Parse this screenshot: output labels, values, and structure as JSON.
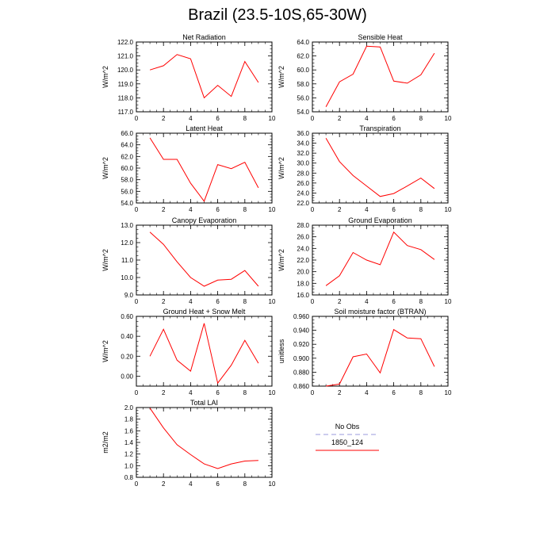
{
  "title": "Brazil (23.5-10S,65-30W)",
  "legend": {
    "items": [
      {
        "label": "No Obs",
        "color": "#9999dd",
        "dashed": true
      },
      {
        "label": "1850_124",
        "color": "#ff0000",
        "dashed": false
      }
    ]
  },
  "chart_data": [
    {
      "type": "line",
      "title": "Net Radiation",
      "ylabel": "W/m^2",
      "xlim": [
        0,
        10
      ],
      "ylim": [
        117,
        122
      ],
      "xticks": [
        0,
        2,
        4,
        6,
        8,
        10
      ],
      "xtick_labels": [
        "0",
        "2",
        "4",
        "6",
        "8",
        "10"
      ],
      "yticks": [
        117,
        118,
        119,
        120,
        121,
        122
      ],
      "ytick_labels": [
        "117.0",
        "118.0",
        "119.0",
        "120.0",
        "121.0",
        "122.0"
      ],
      "series": [
        {
          "name": "1850_124",
          "color": "#ff0000",
          "x": [
            1,
            2,
            3,
            4,
            5,
            6,
            7,
            8,
            9
          ],
          "values": [
            120.0,
            120.3,
            121.1,
            120.8,
            118.0,
            118.9,
            118.1,
            120.6,
            119.1
          ]
        }
      ]
    },
    {
      "type": "line",
      "title": "Sensible Heat",
      "ylabel": "W/m^2",
      "xlim": [
        0,
        10
      ],
      "ylim": [
        54,
        64
      ],
      "xticks": [
        0,
        2,
        4,
        6,
        8,
        10
      ],
      "xtick_labels": [
        "0",
        "2",
        "4",
        "6",
        "8",
        "10"
      ],
      "yticks": [
        54,
        56,
        58,
        60,
        62,
        64
      ],
      "ytick_labels": [
        "54.0",
        "56.0",
        "58.0",
        "60.0",
        "62.0",
        "64.0"
      ],
      "series": [
        {
          "name": "1850_124",
          "color": "#ff0000",
          "x": [
            1,
            2,
            3,
            4,
            5,
            6,
            7,
            8,
            9
          ],
          "values": [
            54.7,
            58.3,
            59.4,
            63.4,
            63.3,
            58.4,
            58.1,
            59.3,
            62.4
          ]
        }
      ]
    },
    {
      "type": "line",
      "title": "Latent Heat",
      "ylabel": "W/m^2",
      "xlim": [
        0,
        10
      ],
      "ylim": [
        54,
        66
      ],
      "xticks": [
        0,
        2,
        4,
        6,
        8,
        10
      ],
      "xtick_labels": [
        "0",
        "2",
        "4",
        "6",
        "8",
        "10"
      ],
      "yticks": [
        54,
        56,
        58,
        60,
        62,
        64,
        66
      ],
      "ytick_labels": [
        "54.0",
        "56.0",
        "58.0",
        "60.0",
        "62.0",
        "64.0",
        "66.0"
      ],
      "series": [
        {
          "name": "1850_124",
          "color": "#ff0000",
          "x": [
            1,
            2,
            3,
            4,
            5,
            6,
            7,
            8,
            9
          ],
          "values": [
            65.2,
            61.5,
            61.5,
            57.4,
            54.3,
            60.6,
            59.9,
            61.0,
            56.6
          ]
        }
      ]
    },
    {
      "type": "line",
      "title": "Transpiration",
      "ylabel": "W/m^2",
      "xlim": [
        0,
        10
      ],
      "ylim": [
        22,
        36
      ],
      "xticks": [
        0,
        2,
        4,
        6,
        8,
        10
      ],
      "xtick_labels": [
        "0",
        "2",
        "4",
        "6",
        "8",
        "10"
      ],
      "yticks": [
        22,
        24,
        26,
        28,
        30,
        32,
        34,
        36
      ],
      "ytick_labels": [
        "22.0",
        "24.0",
        "26.0",
        "28.0",
        "30.0",
        "32.0",
        "34.0",
        "36.0"
      ],
      "series": [
        {
          "name": "1850_124",
          "color": "#ff0000",
          "x": [
            1,
            2,
            3,
            4,
            5,
            6,
            7,
            8,
            9
          ],
          "values": [
            35.0,
            30.3,
            27.5,
            25.4,
            23.3,
            23.9,
            25.4,
            27.0,
            24.9
          ]
        }
      ]
    },
    {
      "type": "line",
      "title": "Canopy Evaporation",
      "ylabel": "W/m^2",
      "xlim": [
        0,
        10
      ],
      "ylim": [
        9,
        13
      ],
      "xticks": [
        0,
        2,
        4,
        6,
        8,
        10
      ],
      "xtick_labels": [
        "0",
        "2",
        "4",
        "6",
        "8",
        "10"
      ],
      "yticks": [
        9,
        10,
        11,
        12,
        13
      ],
      "ytick_labels": [
        "9.0",
        "10.0",
        "11.0",
        "12.0",
        "13.0"
      ],
      "series": [
        {
          "name": "1850_124",
          "color": "#ff0000",
          "x": [
            1,
            2,
            3,
            4,
            5,
            6,
            7,
            8,
            9
          ],
          "values": [
            12.6,
            11.9,
            10.9,
            10.0,
            9.5,
            9.85,
            9.9,
            10.4,
            9.5
          ]
        }
      ]
    },
    {
      "type": "line",
      "title": "Ground Evaporation",
      "ylabel": "W/m^2",
      "xlim": [
        0,
        10
      ],
      "ylim": [
        16,
        28
      ],
      "xticks": [
        0,
        2,
        4,
        6,
        8,
        10
      ],
      "xtick_labels": [
        "0",
        "2",
        "4",
        "6",
        "8",
        "10"
      ],
      "yticks": [
        16,
        18,
        20,
        22,
        24,
        26,
        28
      ],
      "ytick_labels": [
        "16.0",
        "18.0",
        "20.0",
        "22.0",
        "24.0",
        "26.0",
        "28.0"
      ],
      "series": [
        {
          "name": "1850_124",
          "color": "#ff0000",
          "x": [
            1,
            2,
            3,
            4,
            5,
            6,
            7,
            8,
            9
          ],
          "values": [
            17.6,
            19.3,
            23.3,
            22.0,
            21.2,
            26.8,
            24.5,
            23.8,
            22.1
          ]
        }
      ]
    },
    {
      "type": "line",
      "title": "Ground Heat + Snow Melt",
      "ylabel": "W/m^2",
      "xlim": [
        0,
        10
      ],
      "ylim": [
        -0.1,
        0.6
      ],
      "xticks": [
        0,
        2,
        4,
        6,
        8,
        10
      ],
      "xtick_labels": [
        "0",
        "2",
        "4",
        "6",
        "8",
        "10"
      ],
      "yticks": [
        0,
        0.2,
        0.4,
        0.6
      ],
      "ytick_labels": [
        "0.00",
        "0.20",
        "0.40",
        "0.60"
      ],
      "series": [
        {
          "name": "1850_124",
          "color": "#ff0000",
          "x": [
            1,
            2,
            3,
            4,
            5,
            6,
            7,
            8,
            9
          ],
          "values": [
            0.2,
            0.47,
            0.16,
            0.05,
            0.53,
            -0.07,
            0.11,
            0.36,
            0.13
          ]
        }
      ]
    },
    {
      "type": "line",
      "title": "Soil moisture factor (BTRAN)",
      "ylabel": "unitless",
      "xlim": [
        0,
        10
      ],
      "ylim": [
        0.86,
        0.96
      ],
      "xticks": [
        0,
        2,
        4,
        6,
        8,
        10
      ],
      "xtick_labels": [
        "0",
        "2",
        "4",
        "6",
        "8",
        "10"
      ],
      "yticks": [
        0.86,
        0.88,
        0.9,
        0.92,
        0.94,
        0.96
      ],
      "ytick_labels": [
        "0.860",
        "0.880",
        "0.900",
        "0.920",
        "0.940",
        "0.960"
      ],
      "series": [
        {
          "name": "1850_124",
          "color": "#ff0000",
          "x": [
            1,
            2,
            3,
            4,
            5,
            6,
            7,
            8,
            9
          ],
          "values": [
            0.86,
            0.863,
            0.902,
            0.906,
            0.879,
            0.941,
            0.929,
            0.928,
            0.888
          ]
        }
      ]
    },
    {
      "type": "line",
      "title": "Total LAI",
      "ylabel": "m2/m2",
      "xlim": [
        0,
        10
      ],
      "ylim": [
        0.8,
        2.0
      ],
      "xticks": [
        0,
        2,
        4,
        6,
        8,
        10
      ],
      "xtick_labels": [
        "0",
        "2",
        "4",
        "6",
        "8",
        "10"
      ],
      "yticks": [
        0.8,
        1.0,
        1.2,
        1.4,
        1.6,
        1.8,
        2.0
      ],
      "ytick_labels": [
        "0.8",
        "1.0",
        "1.2",
        "1.4",
        "1.6",
        "1.8",
        "2.0"
      ],
      "series": [
        {
          "name": "1850_124",
          "color": "#ff0000",
          "x": [
            1,
            2,
            3,
            4,
            5,
            6,
            7,
            8,
            9
          ],
          "values": [
            1.99,
            1.65,
            1.36,
            1.19,
            1.03,
            0.95,
            1.03,
            1.08,
            1.09
          ]
        }
      ]
    }
  ]
}
